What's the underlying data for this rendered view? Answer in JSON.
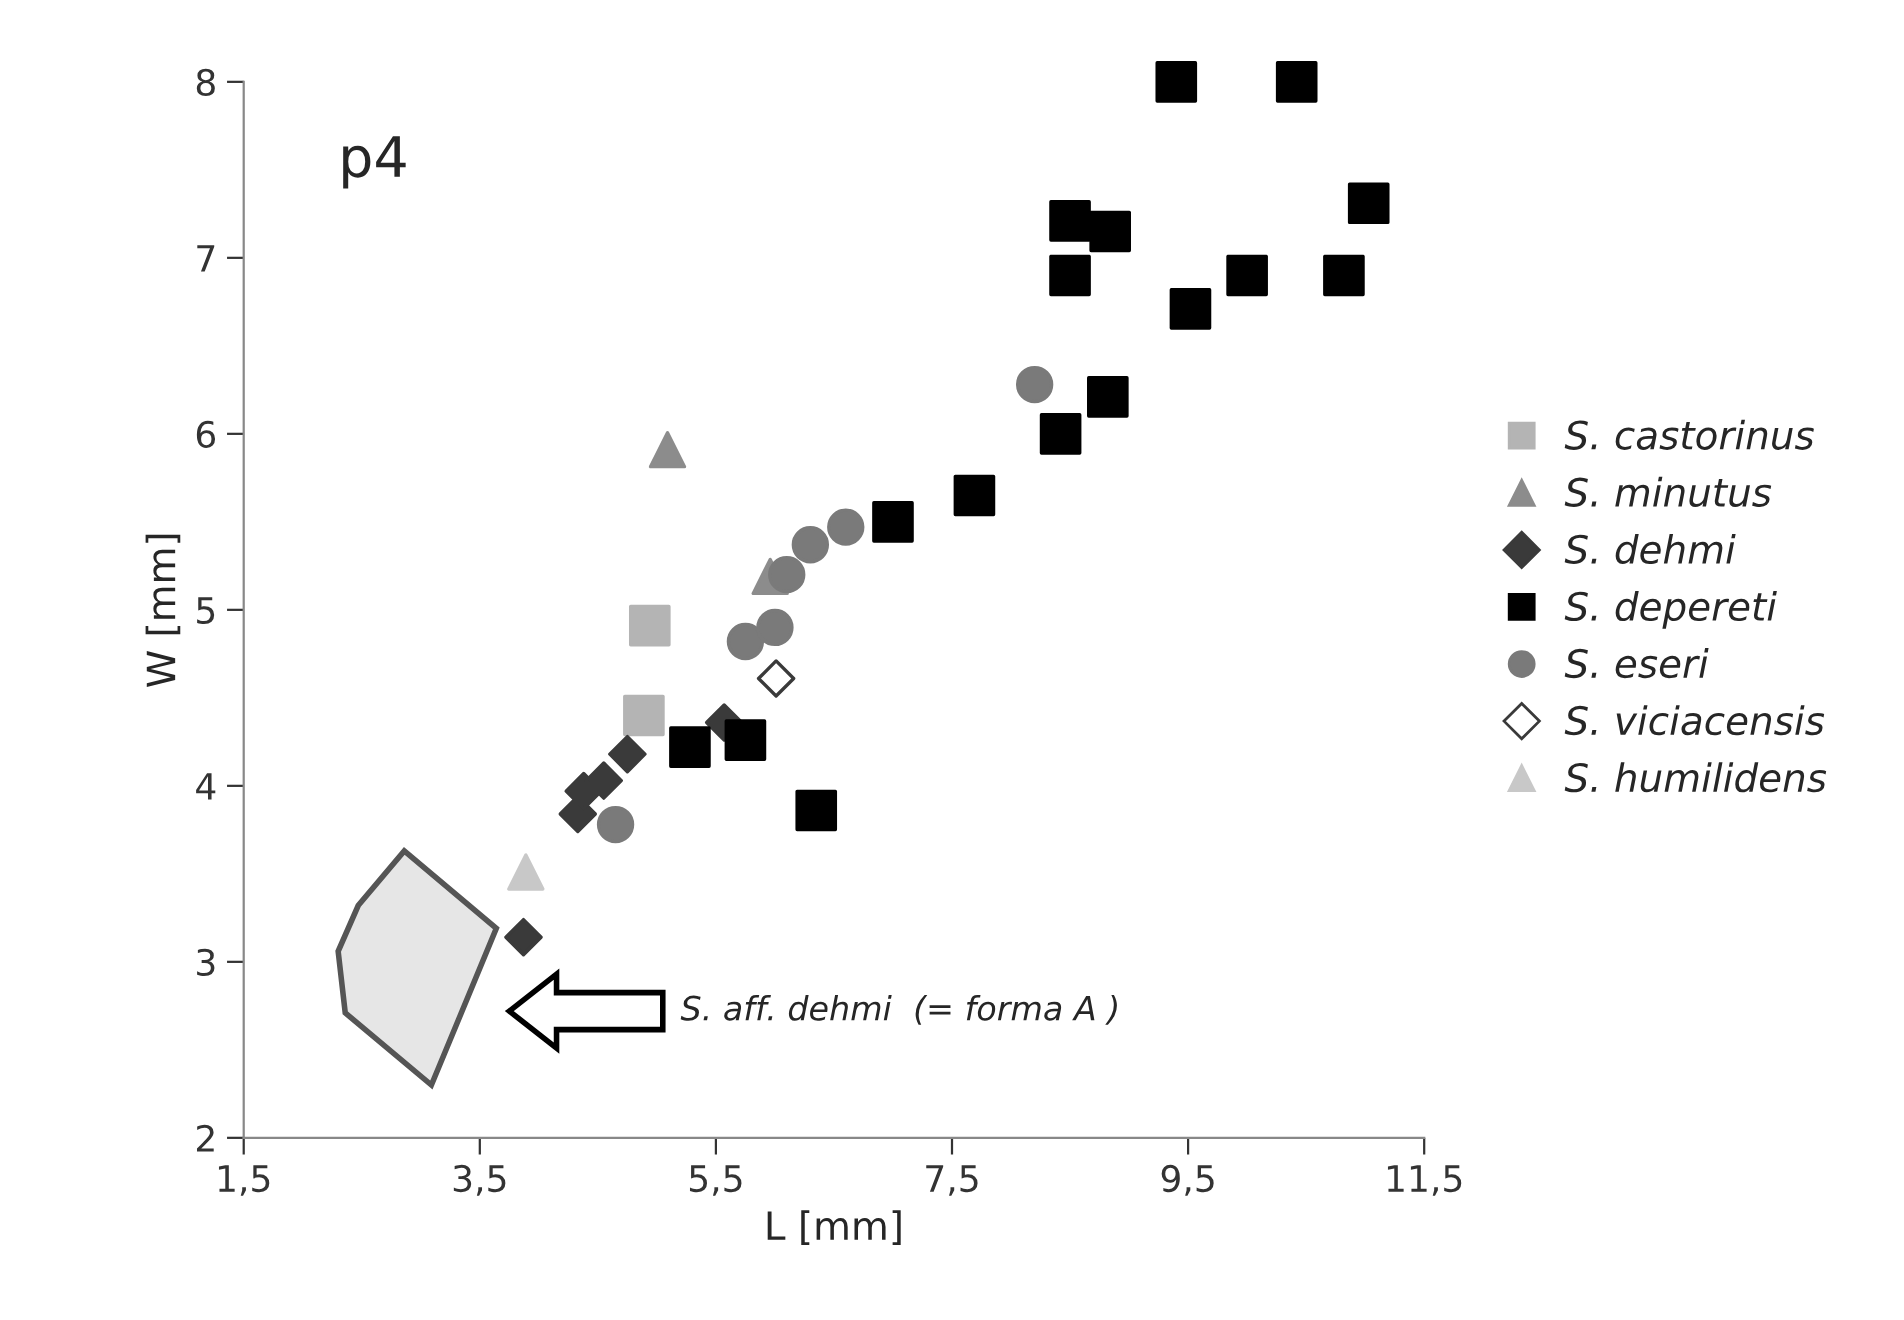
{
  "chart_data": {
    "type": "scatter",
    "title": "p4",
    "xlabel": "L [mm]",
    "ylabel": "W [mm]",
    "xlim": [
      1.5,
      11.5
    ],
    "ylim": [
      2,
      8
    ],
    "xticks": [
      {
        "value": 1.5,
        "label": "1,5"
      },
      {
        "value": 3.5,
        "label": "3,5"
      },
      {
        "value": 5.5,
        "label": "5,5"
      },
      {
        "value": 7.5,
        "label": "7,5"
      },
      {
        "value": 9.5,
        "label": "9,5"
      },
      {
        "value": 11.5,
        "label": "11,5"
      }
    ],
    "yticks": [
      2,
      3,
      4,
      5,
      6,
      7,
      8
    ],
    "grid": false,
    "legend": "right",
    "annotations": [
      "S. aff. dehmi  (= forma A )"
    ],
    "series": [
      {
        "type": "area",
        "color": "#e6e6e6",
        "x": [
          2.86,
          3.64,
          3.09,
          2.36,
          2.3,
          2.47,
          2.86
        ],
        "values": [
          3.63,
          3.19,
          2.3,
          2.71,
          3.06,
          3.32,
          3.63
        ]
      },
      {
        "name": "S. castorinus",
        "color": "#b4b4b4",
        "marker": "square",
        "x": [
          4.94,
          4.89
        ],
        "values": [
          4.91,
          4.4
        ]
      },
      {
        "name": "S. minutus",
        "color": "#8c8c8c",
        "marker": "triangle",
        "x": [
          5.09,
          5.96
        ],
        "values": [
          5.91,
          5.19
        ]
      },
      {
        "name": "S. dehmi",
        "color": "#3a3a3a",
        "marker": "diamond",
        "x": [
          3.87,
          4.33,
          4.38,
          4.55,
          4.75,
          5.57
        ],
        "values": [
          3.14,
          3.84,
          3.97,
          4.03,
          4.18,
          4.36
        ]
      },
      {
        "name": "S. depereti",
        "color": "#000000",
        "marker": "square",
        "x": [
          5.28,
          5.75,
          6.35,
          7.0,
          7.69,
          8.42,
          8.82,
          8.5,
          8.5,
          8.84,
          9.52,
          10.0,
          9.4,
          10.42,
          10.82,
          11.03
        ],
        "values": [
          4.22,
          4.26,
          3.86,
          5.5,
          5.65,
          6.0,
          6.21,
          6.9,
          7.21,
          7.15,
          6.71,
          6.9,
          8.0,
          8.0,
          6.9,
          7.31
        ]
      },
      {
        "name": "S. eseri",
        "color": "#7a7a7a",
        "marker": "circle",
        "x": [
          4.65,
          5.75,
          6.0,
          6.1,
          6.3,
          6.6,
          8.2
        ],
        "values": [
          3.78,
          4.82,
          4.9,
          5.2,
          5.37,
          5.47,
          6.28
        ]
      },
      {
        "name": "S. viciacensis",
        "color": "#ffffff",
        "marker": "diamond",
        "x": [
          6.01
        ],
        "values": [
          4.61
        ]
      },
      {
        "name": "S. humilidens",
        "color": "#c8c8c8",
        "marker": "triangle",
        "x": [
          3.89
        ],
        "values": [
          3.51
        ]
      }
    ]
  }
}
